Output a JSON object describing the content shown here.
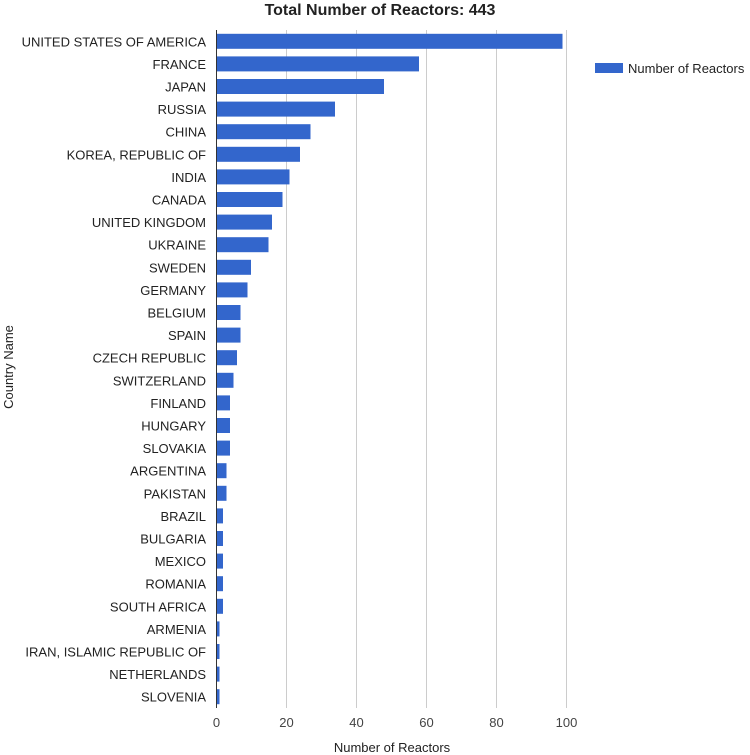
{
  "chart_data": {
    "type": "bar",
    "orientation": "horizontal",
    "title": "Total Number of Reactors: 443",
    "xlabel": "Number of Reactors",
    "ylabel": "Country Name",
    "xlim": [
      0,
      100
    ],
    "xticks": [
      0,
      20,
      40,
      60,
      80,
      100
    ],
    "grid": true,
    "legend_position": "top-right",
    "bar_color": "#3366cc",
    "categories": [
      "UNITED STATES OF AMERICA",
      "FRANCE",
      "JAPAN",
      "RUSSIA",
      "CHINA",
      "KOREA, REPUBLIC OF",
      "INDIA",
      "CANADA",
      "UNITED KINGDOM",
      "UKRAINE",
      "SWEDEN",
      "GERMANY",
      "BELGIUM",
      "SPAIN",
      "CZECH REPUBLIC",
      "SWITZERLAND",
      "FINLAND",
      "HUNGARY",
      "SLOVAKIA",
      "ARGENTINA",
      "PAKISTAN",
      "BRAZIL",
      "BULGARIA",
      "MEXICO",
      "ROMANIA",
      "SOUTH AFRICA",
      "ARMENIA",
      "IRAN, ISLAMIC REPUBLIC OF",
      "NETHERLANDS",
      "SLOVENIA"
    ],
    "series": [
      {
        "name": "Number of Reactors",
        "values": [
          99,
          58,
          48,
          34,
          27,
          24,
          21,
          19,
          16,
          15,
          10,
          9,
          7,
          7,
          6,
          5,
          4,
          4,
          4,
          3,
          3,
          2,
          2,
          2,
          2,
          2,
          1,
          1,
          1,
          1
        ]
      }
    ]
  }
}
